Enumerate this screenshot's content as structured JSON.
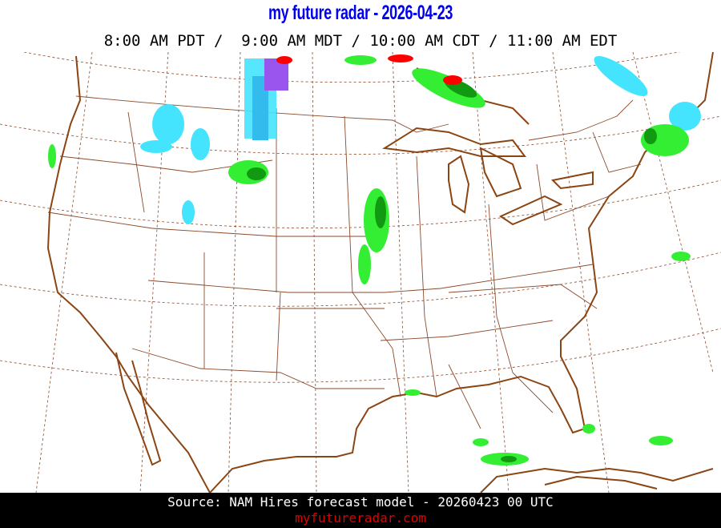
{
  "header": {
    "title": "my future radar - 2026-04-23",
    "times": "8:00 AM PDT /  9:00 AM MDT / 10:00 AM CDT / 11:00 AM EDT"
  },
  "map": {
    "region": "contiguous United States",
    "layers": [
      "coastline",
      "state-borders",
      "graticule",
      "forecast-precipitation"
    ],
    "colors": {
      "coast": "#8b4513",
      "border": "#8b4a2b",
      "graticule": "#8b4a2b",
      "rain_light": "#33ee33",
      "rain_moderate": "#119911",
      "rain_heavy": "#ff0000",
      "snow_light": "#44e4ff",
      "snow_moderate": "#33bbee",
      "mix": "#9955ee"
    }
  },
  "footer": {
    "source": "Source: NAM Hires forecast model - 20260423 00 UTC",
    "site": "myfutureradar.com"
  }
}
